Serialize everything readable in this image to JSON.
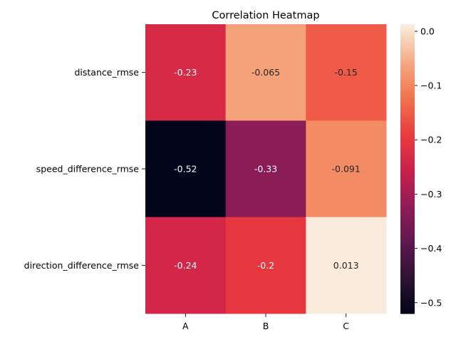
{
  "chart_data": {
    "type": "heatmap",
    "title": "Correlation Heatmap",
    "x_categories": [
      "A",
      "B",
      "C"
    ],
    "y_categories": [
      "distance_rmse",
      "speed_difference_rmse",
      "direction_difference_rmse"
    ],
    "values": [
      [
        -0.23,
        -0.065,
        -0.15
      ],
      [
        -0.52,
        -0.33,
        -0.091
      ],
      [
        -0.24,
        -0.2,
        0.013
      ]
    ],
    "cell_labels": [
      [
        "-0.23",
        "-0.065",
        "-0.15"
      ],
      [
        "-0.52",
        "-0.33",
        "-0.091"
      ],
      [
        "-0.24",
        "-0.2",
        "0.013"
      ]
    ],
    "colorbar": {
      "range": [
        -0.52,
        0.013
      ],
      "ticks": [
        0.0,
        -0.1,
        -0.2,
        -0.3,
        -0.4,
        -0.5
      ],
      "tick_labels": [
        "0.0",
        "−0.1",
        "−0.2",
        "−0.3",
        "−0.4",
        "−0.5"
      ],
      "colormap": "rocket"
    }
  }
}
